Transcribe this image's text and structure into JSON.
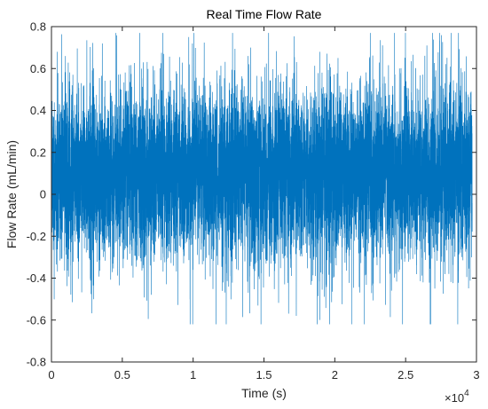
{
  "chart_data": {
    "type": "line",
    "title": "Real Time Flow Rate",
    "xlabel": "Time (s)",
    "ylabel": "Flow Rate (mL/min)",
    "xlim": [
      0,
      30000
    ],
    "ylim": [
      -0.8,
      0.8
    ],
    "x_ticks": [
      0,
      5000,
      10000,
      15000,
      20000,
      25000,
      30000
    ],
    "x_tick_labels": [
      "0",
      "0.5",
      "1",
      "1.5",
      "2",
      "2.5",
      "3"
    ],
    "x_multiplier": {
      "base": "×10",
      "exponent": "4"
    },
    "y_ticks": [
      -0.8,
      -0.6,
      -0.4,
      -0.2,
      0,
      0.2,
      0.4,
      0.6,
      0.8
    ],
    "y_tick_labels": [
      "-0.8",
      "-0.6",
      "-0.4",
      "-0.2",
      "0",
      "0.2",
      "0.4",
      "0.6",
      "0.8"
    ],
    "grid": false,
    "series": [
      {
        "color": "#0072BD",
        "x_range": [
          0,
          29700
        ],
        "mean": 0.1,
        "typical_band": [
          -0.1,
          0.3
        ],
        "dense_envelope": [
          -0.3,
          0.5
        ],
        "max": 0.77,
        "min": -0.62,
        "approx_points": 30000
      }
    ]
  }
}
